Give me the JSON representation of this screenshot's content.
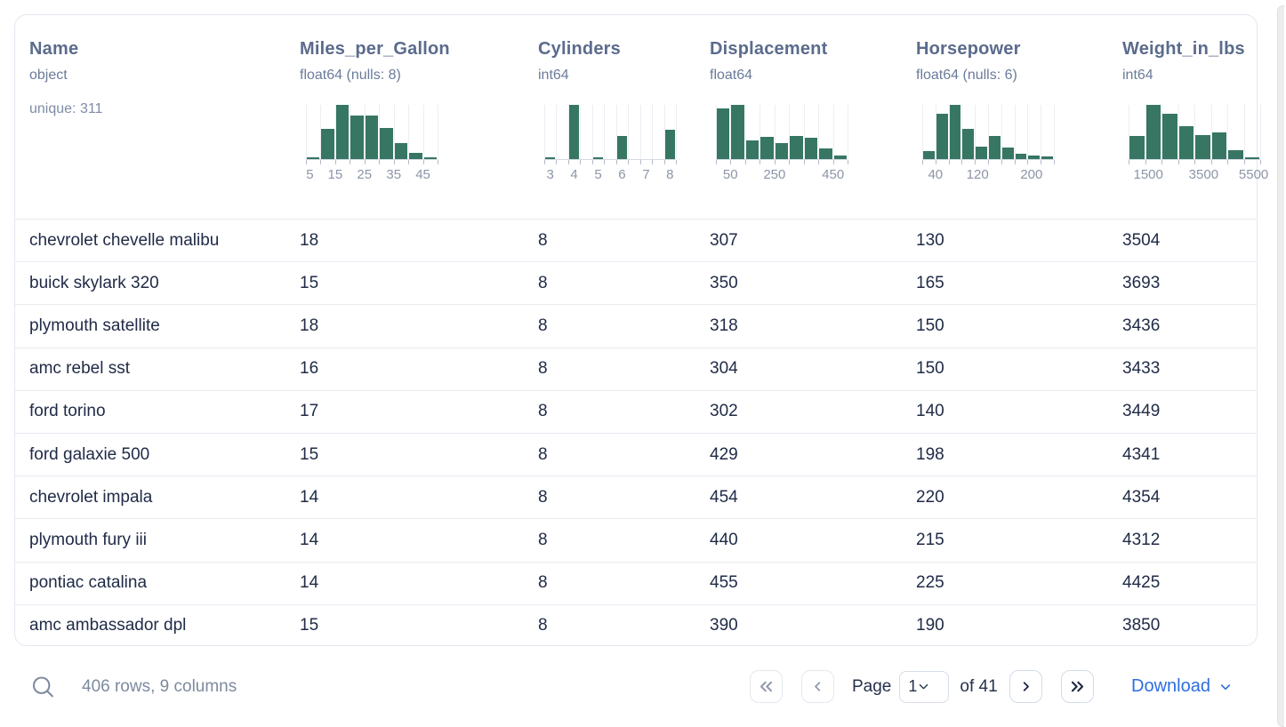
{
  "colors": {
    "hist_bar": "#377663",
    "link_blue": "#2e6ee0"
  },
  "table": {
    "columns": [
      {
        "name": "Name",
        "dtype": "object",
        "extra": "unique: 311"
      },
      {
        "name": "Miles_per_Gallon",
        "dtype": "float64 (nulls: 8)",
        "hist": {
          "bars": [
            0.04,
            0.55,
            1,
            0.8,
            0.8,
            0.57,
            0.29,
            0.11,
            0.03
          ],
          "labels": [
            {
              "t": "5",
              "p": 3
            },
            {
              "t": "15",
              "p": 22.2
            },
            {
              "t": "25",
              "p": 44.4
            },
            {
              "t": "35",
              "p": 66.7
            },
            {
              "t": "45",
              "p": 88.9
            }
          ]
        }
      },
      {
        "name": "Cylinders",
        "dtype": "int64",
        "hist": {
          "bars": [
            0.04,
            0,
            1,
            0,
            0.03,
            0,
            0.42,
            0,
            0,
            0,
            0.54
          ],
          "labels": [
            {
              "t": "3",
              "p": 4.5
            },
            {
              "t": "4",
              "p": 22.7
            },
            {
              "t": "5",
              "p": 40.9
            },
            {
              "t": "6",
              "p": 59.1
            },
            {
              "t": "7",
              "p": 77.3
            },
            {
              "t": "8",
              "p": 95.5
            }
          ]
        }
      },
      {
        "name": "Displacement",
        "dtype": "float64",
        "hist": {
          "bars": [
            0.93,
            1,
            0.34,
            0.41,
            0.3,
            0.43,
            0.39,
            0.19,
            0.06
          ],
          "labels": [
            {
              "t": "50",
              "p": 11
            },
            {
              "t": "250",
              "p": 44.5
            },
            {
              "t": "450",
              "p": 89
            }
          ]
        }
      },
      {
        "name": "Horsepower",
        "dtype": "float64 (nulls: 6)",
        "hist": {
          "bars": [
            0.15,
            0.83,
            1,
            0.55,
            0.23,
            0.42,
            0.22,
            0.1,
            0.06,
            0.05
          ],
          "labels": [
            {
              "t": "40",
              "p": 10
            },
            {
              "t": "120",
              "p": 42
            },
            {
              "t": "200",
              "p": 83
            }
          ]
        }
      },
      {
        "name": "Weight_in_lbs",
        "dtype": "int64",
        "hist": {
          "bars": [
            0.43,
            1,
            0.83,
            0.61,
            0.45,
            0.5,
            0.17,
            0.03
          ],
          "labels": [
            {
              "t": "1500",
              "p": 15
            },
            {
              "t": "3500",
              "p": 57
            },
            {
              "t": "5500",
              "p": 95
            }
          ]
        }
      }
    ],
    "rows": [
      [
        "chevrolet chevelle malibu",
        "18",
        "8",
        "307",
        "130",
        "3504"
      ],
      [
        "buick skylark 320",
        "15",
        "8",
        "350",
        "165",
        "3693"
      ],
      [
        "plymouth satellite",
        "18",
        "8",
        "318",
        "150",
        "3436"
      ],
      [
        "amc rebel sst",
        "16",
        "8",
        "304",
        "150",
        "3433"
      ],
      [
        "ford torino",
        "17",
        "8",
        "302",
        "140",
        "3449"
      ],
      [
        "ford galaxie 500",
        "15",
        "8",
        "429",
        "198",
        "4341"
      ],
      [
        "chevrolet impala",
        "14",
        "8",
        "454",
        "220",
        "4354"
      ],
      [
        "plymouth fury iii",
        "14",
        "8",
        "440",
        "215",
        "4312"
      ],
      [
        "pontiac catalina",
        "14",
        "8",
        "455",
        "225",
        "4425"
      ],
      [
        "amc ambassador dpl",
        "15",
        "8",
        "390",
        "190",
        "3850"
      ]
    ]
  },
  "footer": {
    "summary": {
      "icon": "magnifier",
      "text": "406 rows, 9 columns"
    },
    "pagination": {
      "first_icon": "double-chevron-left",
      "prev_icon": "chevron-left",
      "page_label": "Page",
      "page_value": "1",
      "select_icon": "chevron-down",
      "total_label": "of 41",
      "next_icon": "chevron-right",
      "last_icon": "double-chevron-right"
    },
    "download": {
      "label": "Download",
      "icon": "chevron-down"
    }
  }
}
